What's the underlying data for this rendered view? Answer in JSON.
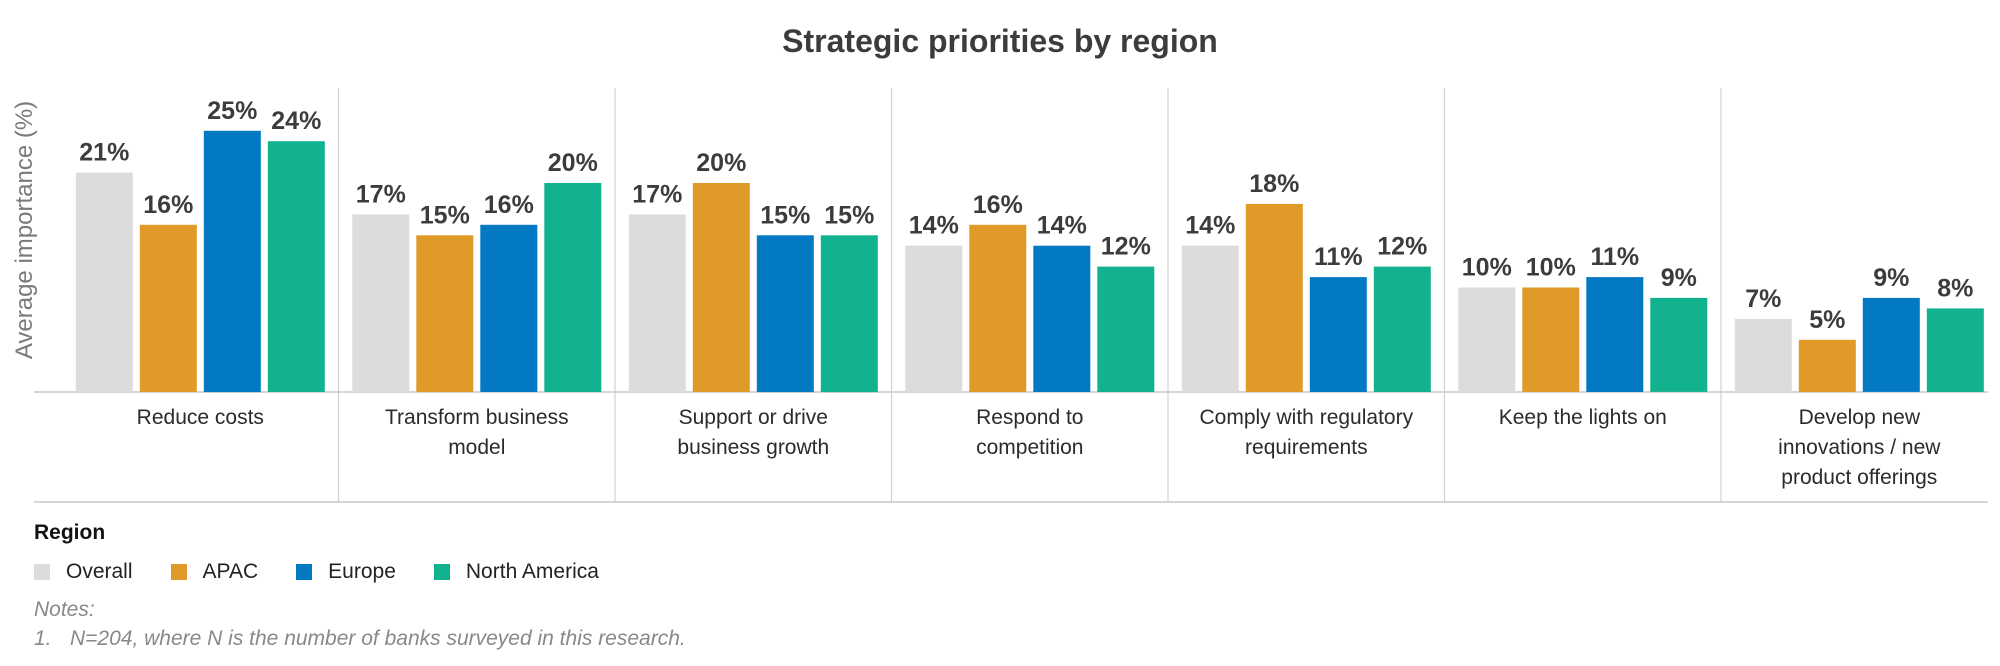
{
  "chart_data": {
    "type": "bar",
    "title": "Strategic priorities by region",
    "ylabel": "Average importance (%)",
    "xlabel": "",
    "ylim": [
      0,
      30
    ],
    "grid": false,
    "categories": [
      [
        "Reduce costs"
      ],
      [
        "Transform business",
        "model"
      ],
      [
        "Support or drive",
        "business growth"
      ],
      [
        "Respond to",
        "competition"
      ],
      [
        "Comply with regulatory",
        "requirements"
      ],
      [
        "Keep the lights on"
      ],
      [
        "Develop new",
        "innovations / new",
        "product offerings"
      ]
    ],
    "series": [
      {
        "name": "Overall",
        "color": "#dcdcdc",
        "values": [
          21,
          17,
          17,
          14,
          14,
          10,
          7
        ]
      },
      {
        "name": "APAC",
        "color": "#e09a28",
        "values": [
          16,
          15,
          20,
          16,
          18,
          10,
          5
        ]
      },
      {
        "name": "Europe",
        "color": "#0379c4",
        "values": [
          25,
          16,
          15,
          14,
          11,
          11,
          9
        ]
      },
      {
        "name": "North America",
        "color": "#12b28f",
        "values": [
          24,
          20,
          15,
          12,
          12,
          9,
          8
        ]
      }
    ],
    "value_suffix": "%"
  },
  "legend": {
    "title": "Region",
    "placement": "bottom-left"
  },
  "notes": {
    "label": "Notes:",
    "items": [
      {
        "number": "1.",
        "text": "N=204, where N is the number of banks surveyed in this research."
      }
    ]
  }
}
